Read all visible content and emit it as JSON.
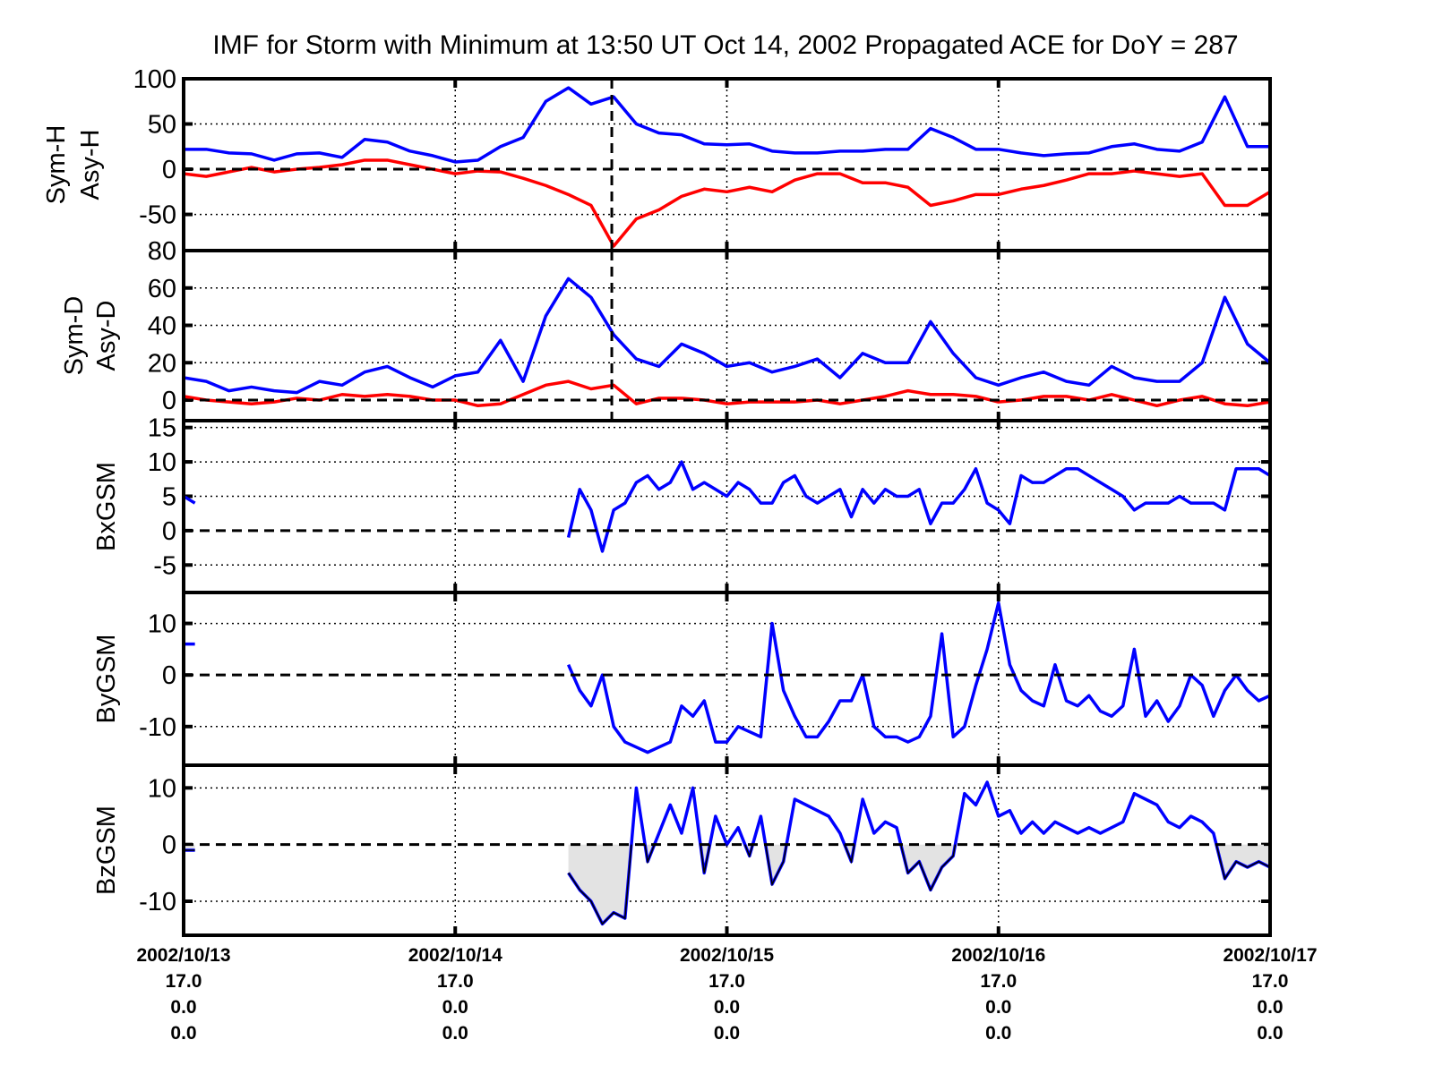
{
  "chart_data": {
    "type": "line",
    "title": "IMF for Storm with Minimum at 13:50 UT Oct 14, 2002  Propagated ACE for DoY = 287",
    "xlim": [
      "2002-10-13 00:00",
      "2002-10-17 00:00"
    ],
    "storm_minimum_time": "2002-10-14 13:50",
    "grid": true,
    "x_ticks": [
      {
        "time": "2002-10-13 00:00",
        "labels": [
          "2002/10/13",
          "17.0",
          "0.0",
          "0.0"
        ]
      },
      {
        "time": "2002-10-14 00:00",
        "labels": [
          "2002/10/14",
          "17.0",
          "0.0",
          "0.0"
        ]
      },
      {
        "time": "2002-10-15 00:00",
        "labels": [
          "2002/10/15",
          "17.0",
          "0.0",
          "0.0"
        ]
      },
      {
        "time": "2002-10-16 00:00",
        "labels": [
          "2002/10/16",
          "17.0",
          "0.0",
          "0.0"
        ]
      },
      {
        "time": "2002-10-17 00:00",
        "labels": [
          "2002/10/17",
          "17.0",
          "0.0",
          "0.0"
        ]
      }
    ],
    "colors": {
      "blue": "#0000ff",
      "red": "#ff0000",
      "negative_fill": "#e3e3e3"
    },
    "panels": [
      {
        "ylabel": [
          "Sym-H",
          "Asy-H"
        ],
        "ylim": [
          -90,
          100
        ],
        "yticks": [
          100,
          50,
          0,
          -50
        ],
        "ytick_labels": [
          "100",
          "50",
          "0",
          "-50"
        ],
        "storm_marker": true,
        "series": [
          {
            "color": "#0000ff",
            "segments": [
              {
                "x": "2h",
                "y": [
                  22,
                  22,
                  18,
                  17,
                  10,
                  17,
                  18,
                  13,
                  33,
                  30,
                  20,
                  15,
                  8,
                  10,
                  25,
                  35,
                  75,
                  90,
                  72,
                  80,
                  50,
                  40,
                  38,
                  28,
                  27,
                  28,
                  20,
                  18,
                  18,
                  20,
                  20,
                  22,
                  22,
                  45,
                  35,
                  22,
                  22,
                  18,
                  15,
                  17,
                  18,
                  25,
                  28,
                  22,
                  20,
                  30,
                  80,
                  25,
                  25
                ]
              }
            ]
          },
          {
            "color": "#ff0000",
            "segments": [
              {
                "x": "2h",
                "y": [
                  -5,
                  -8,
                  -3,
                  2,
                  -3,
                  0,
                  2,
                  5,
                  10,
                  10,
                  5,
                  0,
                  -5,
                  -2,
                  -3,
                  -10,
                  -18,
                  -28,
                  -40,
                  -85,
                  -55,
                  -45,
                  -30,
                  -22,
                  -25,
                  -20,
                  -25,
                  -12,
                  -5,
                  -5,
                  -15,
                  -15,
                  -20,
                  -40,
                  -35,
                  -28,
                  -28,
                  -22,
                  -18,
                  -12,
                  -5,
                  -5,
                  -2,
                  -5,
                  -8,
                  -5,
                  -40,
                  -40,
                  -25
                ]
              }
            ]
          }
        ]
      },
      {
        "ylabel": [
          "Sym-D",
          "Asy-D"
        ],
        "ylim": [
          -11,
          80
        ],
        "yticks": [
          80,
          60,
          40,
          20,
          0
        ],
        "ytick_labels": [
          "80",
          "60",
          "40",
          "20",
          "0"
        ],
        "storm_marker": true,
        "series": [
          {
            "color": "#0000ff",
            "segments": [
              {
                "x": "2h",
                "y": [
                  12,
                  10,
                  5,
                  7,
                  5,
                  4,
                  10,
                  8,
                  15,
                  18,
                  12,
                  7,
                  13,
                  15,
                  32,
                  10,
                  45,
                  65,
                  55,
                  35,
                  22,
                  18,
                  30,
                  25,
                  18,
                  20,
                  15,
                  18,
                  22,
                  12,
                  25,
                  20,
                  20,
                  42,
                  25,
                  12,
                  8,
                  12,
                  15,
                  10,
                  8,
                  18,
                  12,
                  10,
                  10,
                  20,
                  55,
                  30,
                  20
                ]
              }
            ]
          },
          {
            "color": "#ff0000",
            "segments": [
              {
                "x": "2h",
                "y": [
                  2,
                  0,
                  -1,
                  -2,
                  -1,
                  1,
                  0,
                  3,
                  2,
                  3,
                  2,
                  0,
                  0,
                  -3,
                  -2,
                  3,
                  8,
                  10,
                  6,
                  8,
                  -2,
                  1,
                  1,
                  0,
                  -2,
                  -1,
                  -1,
                  -1,
                  0,
                  -2,
                  0,
                  2,
                  5,
                  3,
                  3,
                  2,
                  -1,
                  0,
                  2,
                  2,
                  0,
                  3,
                  0,
                  -3,
                  0,
                  2,
                  -2,
                  -3,
                  -1
                ]
              }
            ]
          }
        ]
      },
      {
        "ylabel": [
          "BxGSM"
        ],
        "ylim": [
          -9,
          16
        ],
        "yticks": [
          15,
          10,
          5,
          0,
          -5
        ],
        "ytick_labels": [
          "15",
          "10",
          "5",
          "0",
          "-5"
        ],
        "series": [
          {
            "color": "#0000ff",
            "segments": [
              {
                "x": "early",
                "y": [
                  5,
                  4
                ]
              },
              {
                "x": "1h",
                "y": [
                  -1,
                  6,
                  3,
                  -3,
                  3,
                  4,
                  7,
                  8,
                  6,
                  7,
                  10,
                  6,
                  7,
                  6,
                  5,
                  7,
                  6,
                  4,
                  4,
                  7,
                  8,
                  5,
                  4,
                  5,
                  6,
                  2,
                  6,
                  4,
                  6,
                  5,
                  5,
                  6,
                  1,
                  4,
                  4,
                  6,
                  9,
                  4,
                  3,
                  1,
                  8,
                  7,
                  7,
                  8,
                  9,
                  9,
                  8,
                  7,
                  6,
                  5,
                  3,
                  4,
                  4,
                  4,
                  5,
                  4,
                  4,
                  4,
                  3,
                  9,
                  9,
                  9,
                  8
                ]
              }
            ]
          }
        ]
      },
      {
        "ylabel": [
          "ByGSM"
        ],
        "ylim": [
          -17.5,
          16
        ],
        "yticks": [
          10,
          0,
          -10
        ],
        "ytick_labels": [
          "10",
          "0",
          "-10"
        ],
        "series": [
          {
            "color": "#0000ff",
            "segments": [
              {
                "x": "early",
                "y": [
                  6,
                  6
                ]
              },
              {
                "x": "1h",
                "y": [
                  2,
                  -3,
                  -6,
                  0,
                  -10,
                  -13,
                  -14,
                  -15,
                  -14,
                  -13,
                  -6,
                  -8,
                  -5,
                  -13,
                  -13,
                  -10,
                  -11,
                  -12,
                  10,
                  -3,
                  -8,
                  -12,
                  -12,
                  -9,
                  -5,
                  -5,
                  0,
                  -10,
                  -12,
                  -12,
                  -13,
                  -12,
                  -8,
                  8,
                  -12,
                  -10,
                  -2,
                  5,
                  14,
                  2,
                  -3,
                  -5,
                  -6,
                  2,
                  -5,
                  -6,
                  -4,
                  -7,
                  -8,
                  -6,
                  5,
                  -8,
                  -5,
                  -9,
                  -6,
                  0,
                  -2,
                  -8,
                  -3,
                  0,
                  -3,
                  -5,
                  -4
                ]
              }
            ]
          }
        ]
      },
      {
        "ylabel": [
          "BzGSM"
        ],
        "ylim": [
          -16,
          14
        ],
        "yticks": [
          10,
          0,
          -10
        ],
        "ytick_labels": [
          "10",
          "0",
          "-10"
        ],
        "fill_negative": true,
        "series": [
          {
            "color": "#0000ff",
            "segments": [
              {
                "x": "early",
                "y": [
                  -1,
                  -1
                ]
              },
              {
                "x": "1h",
                "y": [
                  -5,
                  -8,
                  -10,
                  -14,
                  -12,
                  -13,
                  10,
                  -3,
                  2,
                  7,
                  2,
                  10,
                  -5,
                  5,
                  0,
                  3,
                  -2,
                  5,
                  -7,
                  -3,
                  8,
                  7,
                  6,
                  5,
                  2,
                  -3,
                  8,
                  2,
                  4,
                  3,
                  -5,
                  -3,
                  -8,
                  -4,
                  -2,
                  9,
                  7,
                  11,
                  5,
                  6,
                  2,
                  4,
                  2,
                  4,
                  3,
                  2,
                  3,
                  2,
                  3,
                  4,
                  9,
                  8,
                  7,
                  4,
                  3,
                  5,
                  4,
                  2,
                  -6,
                  -3,
                  -4,
                  -3,
                  -4
                ]
              }
            ]
          }
        ]
      }
    ],
    "time_grids": {
      "2h": [
        "2002-10-13 00:00",
        "2002-10-13 02:00",
        "2002-10-13 04:00",
        "2002-10-13 06:00",
        "2002-10-13 08:00",
        "2002-10-13 10:00",
        "2002-10-13 12:00",
        "2002-10-13 14:00",
        "2002-10-13 16:00",
        "2002-10-13 18:00",
        "2002-10-13 20:00",
        "2002-10-13 22:00",
        "2002-10-14 00:00",
        "2002-10-14 02:00",
        "2002-10-14 04:00",
        "2002-10-14 06:00",
        "2002-10-14 08:00",
        "2002-10-14 10:00",
        "2002-10-14 12:00",
        "2002-10-14 14:00",
        "2002-10-14 16:00",
        "2002-10-14 18:00",
        "2002-10-14 20:00",
        "2002-10-14 22:00",
        "2002-10-15 00:00",
        "2002-10-15 02:00",
        "2002-10-15 04:00",
        "2002-10-15 06:00",
        "2002-10-15 08:00",
        "2002-10-15 10:00",
        "2002-10-15 12:00",
        "2002-10-15 14:00",
        "2002-10-15 16:00",
        "2002-10-15 18:00",
        "2002-10-15 20:00",
        "2002-10-15 22:00",
        "2002-10-16 00:00",
        "2002-10-16 02:00",
        "2002-10-16 04:00",
        "2002-10-16 06:00",
        "2002-10-16 08:00",
        "2002-10-16 10:00",
        "2002-10-16 12:00",
        "2002-10-16 14:00",
        "2002-10-16 16:00",
        "2002-10-16 18:00",
        "2002-10-16 20:00",
        "2002-10-16 22:00",
        "2002-10-17 00:00"
      ],
      "early": [
        "2002-10-13 00:00",
        "2002-10-13 01:00"
      ],
      "1h": [
        "2002-10-14 10:00",
        "2002-10-14 11:00",
        "2002-10-14 12:00",
        "2002-10-14 13:00",
        "2002-10-14 14:00",
        "2002-10-14 15:00",
        "2002-10-14 16:00",
        "2002-10-14 17:00",
        "2002-10-14 18:00",
        "2002-10-14 19:00",
        "2002-10-14 20:00",
        "2002-10-14 21:00",
        "2002-10-14 22:00",
        "2002-10-14 23:00",
        "2002-10-15 00:00",
        "2002-10-15 01:00",
        "2002-10-15 02:00",
        "2002-10-15 03:00",
        "2002-10-15 04:00",
        "2002-10-15 05:00",
        "2002-10-15 06:00",
        "2002-10-15 07:00",
        "2002-10-15 08:00",
        "2002-10-15 09:00",
        "2002-10-15 10:00",
        "2002-10-15 11:00",
        "2002-10-15 12:00",
        "2002-10-15 13:00",
        "2002-10-15 14:00",
        "2002-10-15 15:00",
        "2002-10-15 16:00",
        "2002-10-15 17:00",
        "2002-10-15 18:00",
        "2002-10-15 19:00",
        "2002-10-15 20:00",
        "2002-10-15 21:00",
        "2002-10-15 22:00",
        "2002-10-15 23:00",
        "2002-10-16 00:00",
        "2002-10-16 01:00",
        "2002-10-16 02:00",
        "2002-10-16 03:00",
        "2002-10-16 04:00",
        "2002-10-16 05:00",
        "2002-10-16 06:00",
        "2002-10-16 07:00",
        "2002-10-16 08:00",
        "2002-10-16 09:00",
        "2002-10-16 10:00",
        "2002-10-16 11:00",
        "2002-10-16 12:00",
        "2002-10-16 13:00",
        "2002-10-16 14:00",
        "2002-10-16 15:00",
        "2002-10-16 16:00",
        "2002-10-16 17:00",
        "2002-10-16 18:00",
        "2002-10-16 19:00",
        "2002-10-16 20:00",
        "2002-10-16 21:00",
        "2002-10-16 22:00",
        "2002-10-16 23:00",
        "2002-10-17 00:00"
      ]
    }
  }
}
